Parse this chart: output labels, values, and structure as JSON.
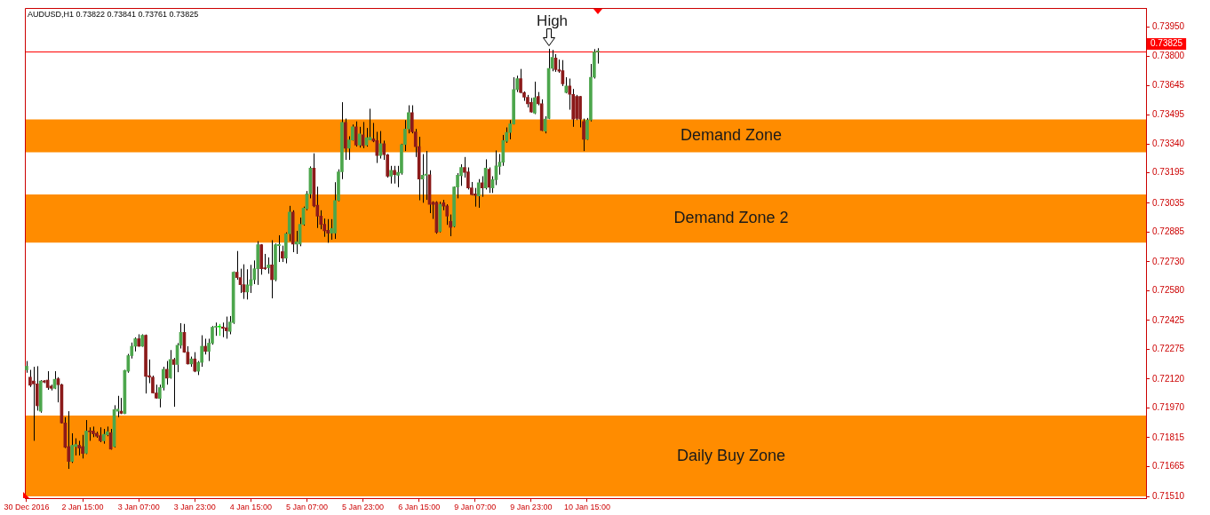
{
  "chart_data": {
    "type": "candlestick",
    "title": "AUDUSD,H1 0.73822 0.73841 0.73761 0.73825",
    "categories": [
      "30 Dec 2016",
      null,
      null,
      null,
      null,
      null,
      null,
      null,
      null,
      null,
      null,
      null,
      null,
      null,
      null,
      null,
      "2 Jan 15:00",
      null,
      null,
      null,
      null,
      null,
      null,
      null,
      null,
      null,
      null,
      null,
      null,
      null,
      null,
      null,
      "3 Jan 07:00",
      null,
      null,
      null,
      null,
      null,
      null,
      null,
      null,
      null,
      null,
      null,
      null,
      null,
      null,
      null,
      "3 Jan 23:00",
      null,
      null,
      null,
      null,
      null,
      null,
      null,
      null,
      null,
      null,
      null,
      null,
      null,
      null,
      null,
      "4 Jan 15:00",
      null,
      null,
      null,
      null,
      null,
      null,
      null,
      null,
      null,
      null,
      null,
      null,
      null,
      null,
      null,
      "5 Jan 07:00",
      null,
      null,
      null,
      null,
      null,
      null,
      null,
      null,
      null,
      null,
      null,
      null,
      null,
      null,
      null,
      "5 Jan 23:00",
      null,
      null,
      null,
      null,
      null,
      null,
      null,
      null,
      null,
      null,
      null,
      null,
      null,
      null,
      null,
      "6 Jan 15:00",
      null,
      null,
      null,
      null,
      null,
      null,
      null,
      null,
      null,
      null,
      null,
      null,
      null,
      null,
      null,
      "9 Jan 07:00",
      null,
      null,
      null,
      null,
      null,
      null,
      null,
      null,
      null,
      null,
      null,
      null,
      null,
      null,
      null,
      "9 Jan 23:00",
      null,
      null,
      null,
      null,
      null,
      null,
      null,
      null,
      null,
      null,
      null,
      null,
      null,
      null,
      null,
      "10 Jan 15:00",
      null,
      null,
      null,
      null,
      null,
      null,
      null,
      null,
      null,
      null,
      null,
      null,
      null,
      null,
      null,
      null,
      null,
      null,
      null,
      null,
      null,
      null,
      null,
      null,
      null,
      null,
      null,
      null,
      null,
      null,
      null,
      null,
      null,
      null,
      null,
      null,
      null,
      null,
      null,
      null,
      null,
      null,
      null,
      null,
      null,
      null,
      null,
      null,
      null,
      null,
      null,
      null,
      null,
      null,
      null,
      null,
      null,
      null,
      null,
      null,
      null,
      null,
      null,
      null,
      null,
      null,
      null,
      null,
      null,
      null,
      null,
      null,
      null,
      null,
      null,
      null,
      null,
      null,
      null,
      null,
      null,
      null,
      null,
      null,
      null,
      null,
      null,
      null,
      null,
      null,
      null,
      null,
      null,
      null,
      null,
      null,
      null,
      null,
      null,
      null,
      null,
      null,
      null,
      null,
      null,
      null,
      null,
      null,
      null,
      null,
      null,
      null,
      null,
      null,
      null,
      null,
      null,
      null,
      null,
      null,
      null,
      null,
      null,
      null,
      null,
      null,
      null,
      null,
      null,
      null,
      null,
      null,
      null,
      null,
      null,
      null,
      null,
      null,
      null,
      null,
      null,
      null,
      null,
      null,
      null,
      null,
      null,
      null,
      null,
      null,
      null,
      null,
      null,
      null,
      null,
      null,
      null,
      null,
      null
    ],
    "ohlc": [
      [
        0.72168,
        0.72214,
        0.72153,
        0.72187
      ],
      [
        0.7213,
        0.72168,
        0.72079,
        0.72088
      ],
      [
        0.7211,
        0.72184,
        0.71799,
        0.72095
      ],
      [
        0.72095,
        0.72187,
        0.71956,
        0.71981
      ],
      [
        0.71953,
        0.72115,
        0.71945,
        0.7211
      ],
      [
        0.72111,
        0.72115,
        0.72099,
        0.72104
      ],
      [
        0.72115,
        0.72161,
        0.72064,
        0.72076
      ],
      [
        0.72084,
        0.72091,
        0.72061,
        0.72072
      ],
      [
        0.72072,
        0.72161,
        0.72068,
        0.72119
      ],
      [
        0.72122,
        0.7213,
        0.71999,
        0.72091
      ],
      [
        0.72091,
        0.72096,
        0.71889,
        0.71892
      ],
      [
        0.71892,
        0.71922,
        0.71761,
        0.71766
      ],
      [
        0.71769,
        0.71953,
        0.71653,
        0.71692
      ],
      [
        0.71692,
        0.71838,
        0.71684,
        0.71776
      ],
      [
        0.71769,
        0.71812,
        0.71723,
        0.7178
      ],
      [
        0.71776,
        0.71799,
        0.71723,
        0.71761
      ],
      [
        0.71769,
        0.7183,
        0.71707,
        0.71733
      ],
      [
        0.71735,
        0.71907,
        0.7173,
        0.7185
      ],
      [
        0.7185,
        0.71869,
        0.71799,
        0.71846
      ],
      [
        0.7185,
        0.71873,
        0.71818,
        0.71835
      ],
      [
        0.71838,
        0.71846,
        0.71815,
        0.71823
      ],
      [
        0.71826,
        0.71869,
        0.71792,
        0.71799
      ],
      [
        0.71799,
        0.71861,
        0.71784,
        0.71833
      ],
      [
        0.7183,
        0.71873,
        0.71823,
        0.71846
      ],
      [
        0.71841,
        0.71861,
        0.71753,
        0.71756
      ],
      [
        0.71769,
        0.71984,
        0.71764,
        0.71961
      ],
      [
        0.71953,
        0.72033,
        0.71922,
        0.71964
      ],
      [
        0.71953,
        0.72022,
        0.71938,
        0.71942
      ],
      [
        0.71941,
        0.72168,
        0.71938,
        0.72165
      ],
      [
        0.72161,
        0.72251,
        0.72153,
        0.72242
      ],
      [
        0.72242,
        0.7231,
        0.72227,
        0.72291
      ],
      [
        0.72291,
        0.72337,
        0.72264,
        0.7233
      ],
      [
        0.7233,
        0.72353,
        0.72288,
        0.72291
      ],
      [
        0.72291,
        0.72353,
        0.72288,
        0.72348
      ],
      [
        0.72348,
        0.72352,
        0.72045,
        0.72134
      ],
      [
        0.72138,
        0.72222,
        0.72099,
        0.7213
      ],
      [
        0.7213,
        0.72138,
        0.72045,
        0.72048
      ],
      [
        0.72048,
        0.72091,
        0.72018,
        0.72021
      ],
      [
        0.72019,
        0.72091,
        0.71973,
        0.72076
      ],
      [
        0.72076,
        0.72184,
        0.72061,
        0.72171
      ],
      [
        0.72171,
        0.72214,
        0.72091,
        0.72125
      ],
      [
        0.72127,
        0.72271,
        0.72122,
        0.72222
      ],
      [
        0.72222,
        0.7223,
        0.71976,
        0.72196
      ],
      [
        0.72196,
        0.72307,
        0.72156,
        0.72296
      ],
      [
        0.72296,
        0.72411,
        0.72279,
        0.72363
      ],
      [
        0.72363,
        0.72407,
        0.72257,
        0.7226
      ],
      [
        0.7226,
        0.72291,
        0.72196,
        0.72199
      ],
      [
        0.72199,
        0.72237,
        0.72184,
        0.72225
      ],
      [
        0.72225,
        0.7226,
        0.72156,
        0.72161
      ],
      [
        0.72161,
        0.72214,
        0.72141,
        0.72207
      ],
      [
        0.72207,
        0.72348,
        0.72184,
        0.72291
      ],
      [
        0.72291,
        0.7233,
        0.72248,
        0.72264
      ],
      [
        0.72264,
        0.7233,
        0.72214,
        0.72307
      ],
      [
        0.72307,
        0.72396,
        0.72299,
        0.7239
      ],
      [
        0.7239,
        0.72414,
        0.72345,
        0.72393
      ],
      [
        0.72391,
        0.72407,
        0.72345,
        0.72391
      ],
      [
        0.72391,
        0.72414,
        0.72338,
        0.72384
      ],
      [
        0.72387,
        0.72445,
        0.7233,
        0.72371
      ],
      [
        0.72368,
        0.72448,
        0.72353,
        0.72417
      ],
      [
        0.72414,
        0.7268,
        0.72407,
        0.72676
      ],
      [
        0.72676,
        0.72786,
        0.72637,
        0.72648
      ],
      [
        0.72648,
        0.72694,
        0.72568,
        0.72611
      ],
      [
        0.72611,
        0.72717,
        0.72537,
        0.72573
      ],
      [
        0.72573,
        0.72691,
        0.72534,
        0.7261
      ],
      [
        0.72607,
        0.72714,
        0.72568,
        0.72637
      ],
      [
        0.72637,
        0.72737,
        0.72614,
        0.72694
      ],
      [
        0.72694,
        0.72837,
        0.7261,
        0.72819
      ],
      [
        0.72819,
        0.72822,
        0.72663,
        0.72694
      ],
      [
        0.72699,
        0.72771,
        0.72688,
        0.72694
      ],
      [
        0.72699,
        0.72753,
        0.72668,
        0.72714
      ],
      [
        0.72714,
        0.72842,
        0.7254,
        0.72637
      ],
      [
        0.72637,
        0.72825,
        0.72629,
        0.72819
      ],
      [
        0.72814,
        0.72868,
        0.72729,
        0.7282
      ],
      [
        0.72783,
        0.72814,
        0.72729,
        0.72749
      ],
      [
        0.72749,
        0.72883,
        0.72722,
        0.72876
      ],
      [
        0.72876,
        0.73021,
        0.72837,
        0.72989
      ],
      [
        0.72989,
        0.72998,
        0.7278,
        0.72822
      ],
      [
        0.72822,
        0.72891,
        0.72771,
        0.72834
      ],
      [
        0.72822,
        0.7296,
        0.72811,
        0.72925
      ],
      [
        0.72925,
        0.73017,
        0.72918,
        0.73009
      ],
      [
        0.73006,
        0.73098,
        0.72998,
        0.73083
      ],
      [
        0.73083,
        0.73226,
        0.7306,
        0.73217
      ],
      [
        0.73217,
        0.73294,
        0.73014,
        0.73021
      ],
      [
        0.73025,
        0.73121,
        0.72906,
        0.72968
      ],
      [
        0.72968,
        0.72998,
        0.72899,
        0.72925
      ],
      [
        0.72925,
        0.72955,
        0.7286,
        0.72891
      ],
      [
        0.72894,
        0.72952,
        0.72829,
        0.72879
      ],
      [
        0.72879,
        0.72952,
        0.72845,
        0.72903
      ],
      [
        0.72879,
        0.73144,
        0.72849,
        0.73049
      ],
      [
        0.73049,
        0.73211,
        0.73045,
        0.73198
      ],
      [
        0.73198,
        0.7356,
        0.7316,
        0.73455
      ],
      [
        0.73455,
        0.73475,
        0.7326,
        0.73321
      ],
      [
        0.73321,
        0.73383,
        0.7326,
        0.73364
      ],
      [
        0.73364,
        0.73444,
        0.7336,
        0.73432
      ],
      [
        0.73432,
        0.7346,
        0.73329,
        0.73337
      ],
      [
        0.73337,
        0.73432,
        0.73324,
        0.73395
      ],
      [
        0.7339,
        0.73457,
        0.73321,
        0.73334
      ],
      [
        0.73337,
        0.73426,
        0.73329,
        0.73375
      ],
      [
        0.73364,
        0.73526,
        0.73363,
        0.73378
      ],
      [
        0.7337,
        0.73452,
        0.73352,
        0.73358
      ],
      [
        0.7336,
        0.73406,
        0.73244,
        0.73283
      ],
      [
        0.73283,
        0.7341,
        0.73267,
        0.73344
      ],
      [
        0.73344,
        0.7336,
        0.7326,
        0.73287
      ],
      [
        0.73287,
        0.73291,
        0.73168,
        0.73175
      ],
      [
        0.73175,
        0.73229,
        0.73137,
        0.73206
      ],
      [
        0.73206,
        0.73229,
        0.73137,
        0.73183
      ],
      [
        0.7318,
        0.73229,
        0.73118,
        0.73195
      ],
      [
        0.73191,
        0.73344,
        0.73183,
        0.7334
      ],
      [
        0.7334,
        0.73467,
        0.73306,
        0.73421
      ],
      [
        0.73421,
        0.73544,
        0.73398,
        0.73506
      ],
      [
        0.73506,
        0.73544,
        0.73398,
        0.73406
      ],
      [
        0.73406,
        0.73421,
        0.73275,
        0.73329
      ],
      [
        0.73329,
        0.7338,
        0.7305,
        0.7316
      ],
      [
        0.7316,
        0.7329,
        0.73037,
        0.7318
      ],
      [
        0.7318,
        0.73306,
        0.73052,
        0.73186
      ],
      [
        0.73183,
        0.73206,
        0.72983,
        0.73029
      ],
      [
        0.7304,
        0.73045,
        0.72953,
        0.73029
      ],
      [
        0.7304,
        0.73045,
        0.72876,
        0.72883
      ],
      [
        0.72888,
        0.73042,
        0.72883,
        0.73029
      ],
      [
        0.73037,
        0.73052,
        0.72998,
        0.73019
      ],
      [
        0.73021,
        0.73029,
        0.72922,
        0.72968
      ],
      [
        0.7294,
        0.72976,
        0.72863,
        0.72909
      ],
      [
        0.72914,
        0.73122,
        0.72909,
        0.73119
      ],
      [
        0.73119,
        0.73191,
        0.7306,
        0.7318
      ],
      [
        0.73178,
        0.73237,
        0.73125,
        0.73221
      ],
      [
        0.73221,
        0.73275,
        0.73168,
        0.73195
      ],
      [
        0.73198,
        0.73221,
        0.73106,
        0.73114
      ],
      [
        0.73114,
        0.73145,
        0.73075,
        0.73079
      ],
      [
        0.73083,
        0.73114,
        0.73017,
        0.73075
      ],
      [
        0.73072,
        0.7316,
        0.73011,
        0.73141
      ],
      [
        0.73141,
        0.73175,
        0.73068,
        0.73114
      ],
      [
        0.73114,
        0.73263,
        0.73106,
        0.73217
      ],
      [
        0.73211,
        0.73221,
        0.73088,
        0.73117
      ],
      [
        0.73114,
        0.73175,
        0.73088,
        0.73157
      ],
      [
        0.73157,
        0.73309,
        0.73129,
        0.73229
      ],
      [
        0.73226,
        0.73291,
        0.73183,
        0.73248
      ],
      [
        0.73248,
        0.7339,
        0.73229,
        0.7336
      ],
      [
        0.73357,
        0.73429,
        0.73349,
        0.73403
      ],
      [
        0.73403,
        0.73467,
        0.73367,
        0.73447
      ],
      [
        0.73447,
        0.7369,
        0.73444,
        0.73626
      ],
      [
        0.73626,
        0.73698,
        0.73613,
        0.73683
      ],
      [
        0.73683,
        0.73733,
        0.73606,
        0.7361
      ],
      [
        0.7361,
        0.73616,
        0.73567,
        0.73586
      ],
      [
        0.73586,
        0.73598,
        0.73533,
        0.73552
      ],
      [
        0.73559,
        0.73582,
        0.73506,
        0.73509
      ],
      [
        0.73503,
        0.73667,
        0.73498,
        0.73583
      ],
      [
        0.7359,
        0.73613,
        0.73544,
        0.73552
      ],
      [
        0.73552,
        0.73575,
        0.7341,
        0.73413
      ],
      [
        0.7341,
        0.73487,
        0.73398,
        0.73472
      ],
      [
        0.73475,
        0.73838,
        0.73472,
        0.73736
      ],
      [
        0.73736,
        0.73832,
        0.73721,
        0.73793
      ],
      [
        0.7379,
        0.7381,
        0.73718,
        0.73729
      ],
      [
        0.73729,
        0.73782,
        0.73713,
        0.73721
      ],
      [
        0.73724,
        0.73779,
        0.73644,
        0.73656
      ],
      [
        0.7361,
        0.7369,
        0.73606,
        0.73644
      ],
      [
        0.73644,
        0.73683,
        0.73521,
        0.73601
      ],
      [
        0.73601,
        0.73629,
        0.73432,
        0.73472
      ],
      [
        0.7359,
        0.73598,
        0.73467,
        0.73475
      ],
      [
        0.7359,
        0.73592,
        0.73429,
        0.73472
      ],
      [
        0.7346,
        0.73475,
        0.73306,
        0.73367
      ],
      [
        0.73367,
        0.73478,
        0.73364,
        0.73467
      ],
      [
        0.73467,
        0.73759,
        0.7346,
        0.7369
      ],
      [
        0.7369,
        0.73836,
        0.73683,
        0.73821
      ],
      [
        0.73822,
        0.73841,
        0.73761,
        0.73825
      ],
      null,
      null,
      null,
      null,
      null,
      null,
      null,
      null,
      null,
      null,
      null,
      null,
      null,
      null,
      null,
      null,
      null,
      null,
      null,
      null,
      null,
      null,
      null,
      null,
      null,
      null,
      null,
      null,
      null,
      null,
      null,
      null,
      null,
      null,
      null,
      null,
      null,
      null,
      null,
      null,
      null,
      null,
      null,
      null,
      null,
      null,
      null,
      null,
      null,
      null,
      null,
      null,
      null,
      null,
      null,
      null,
      null,
      null,
      null,
      null,
      null,
      null,
      null,
      null,
      null,
      null,
      null,
      null,
      null,
      null,
      null,
      null,
      null,
      null,
      null,
      null,
      null,
      null,
      null,
      null,
      null,
      null,
      null,
      null,
      null,
      null,
      null,
      null,
      null,
      null,
      null,
      null,
      null,
      null,
      null,
      null,
      null,
      null,
      null,
      null,
      null,
      null,
      null,
      null,
      null,
      null,
      null,
      null,
      null,
      null,
      null,
      null,
      null,
      null,
      null,
      null,
      null,
      null,
      null,
      null,
      null,
      null,
      null,
      null,
      null,
      null,
      null,
      null,
      null,
      null,
      null,
      null,
      null,
      null,
      null,
      null,
      null,
      null,
      null,
      null,
      null,
      null,
      null,
      null,
      null,
      null,
      null,
      null,
      null,
      null,
      null,
      null,
      null,
      null,
      null,
      null
    ],
    "colors": [
      "#4ca64c",
      "#8b1a1a",
      "#8b1a1a",
      "#8b1a1a",
      "#4ca64c",
      "#8b1a1a",
      "#8b1a1a",
      "#8b1a1a",
      "#4ca64c",
      "#8b1a1a",
      "#8b1a1a",
      "#8b1a1a",
      "#8b1a1a",
      "#4ca64c",
      "#4ca64c",
      "#8b1a1a",
      "#8b1a1a",
      "#4ca64c",
      "#8b1a1a",
      "#8b1a1a",
      "#8b1a1a",
      "#8b1a1a",
      "#4ca64c",
      "#4ca64c",
      "#8b1a1a",
      "#4ca64c",
      "#4ca64c",
      "#8b1a1a",
      "#4ca64c",
      "#4ca64c",
      "#4ca64c",
      "#4ca64c",
      "#8b1a1a",
      "#4ca64c",
      "#8b1a1a",
      "#8b1a1a",
      "#8b1a1a",
      "#8b1a1a",
      "#4ca64c",
      "#4ca64c",
      "#8b1a1a",
      "#4ca64c",
      "#8b1a1a",
      "#4ca64c",
      "#4ca64c",
      "#8b1a1a",
      "#8b1a1a",
      "#4ca64c",
      "#8b1a1a",
      "#4ca64c",
      "#4ca64c",
      "#8b1a1a",
      "#4ca64c",
      "#4ca64c",
      "#4ca64c",
      "#00ee00",
      "#8b1a1a",
      "#8b1a1a",
      "#4ca64c",
      "#4ca64c",
      "#8b1a1a",
      "#8b1a1a",
      "#8b1a1a",
      "#4ca64c",
      "#4ca64c",
      "#4ca64c",
      "#4ca64c",
      "#8b1a1a",
      "#8b1a1a",
      "#4ca64c",
      "#8b1a1a",
      "#4ca64c",
      "#4ca64c",
      "#8b1a1a",
      "#4ca64c",
      "#4ca64c",
      "#8b1a1a",
      "#4ca64c",
      "#4ca64c",
      "#4ca64c",
      "#4ca64c",
      "#4ca64c",
      "#8b1a1a",
      "#8b1a1a",
      "#8b1a1a",
      "#8b1a1a",
      "#8b1a1a",
      "#4ca64c",
      "#4ca64c",
      "#4ca64c",
      "#4ca64c",
      "#8b1a1a",
      "#4ca64c",
      "#4ca64c",
      "#8b1a1a",
      "#4ca64c",
      "#8b1a1a",
      "#4ca64c",
      "#4ca64c",
      "#8b1a1a",
      "#8b1a1a",
      "#4ca64c",
      "#8b1a1a",
      "#8b1a1a",
      "#4ca64c",
      "#8b1a1a",
      "#4ca64c",
      "#4ca64c",
      "#4ca64c",
      "#4ca64c",
      "#8b1a1a",
      "#8b1a1a",
      "#8b1a1a",
      "#4ca64c",
      "#4ca64c",
      "#8b1a1a",
      "#8b1a1a",
      "#8b1a1a",
      "#4ca64c",
      "#8b1a1a",
      "#8b1a1a",
      "#8b1a1a",
      "#4ca64c",
      "#4ca64c",
      "#4ca64c",
      "#8b1a1a",
      "#8b1a1a",
      "#8b1a1a",
      "#8b1a1a",
      "#4ca64c",
      "#8b1a1a",
      "#4ca64c",
      "#8b1a1a",
      "#4ca64c",
      "#4ca64c",
      "#4ca64c",
      "#4ca64c",
      "#4ca64c",
      "#4ca64c",
      "#4ca64c",
      "#4ca64c",
      "#8b1a1a",
      "#8b1a1a",
      "#8b1a1a",
      "#8b1a1a",
      "#4ca64c",
      "#8b1a1a",
      "#8b1a1a",
      "#4ca64c",
      "#4ca64c",
      "#4ca64c",
      "#8b1a1a",
      "#8b1a1a",
      "#8b1a1a",
      "#4ca64c",
      "#8b1a1a",
      "#8b1a1a",
      "#8b1a1a",
      "#8b1a1a",
      "#8b1a1a",
      "#4ca64c",
      "#4ca64c",
      "#4ca64c",
      "#4ca64c",
      null,
      null,
      null,
      null,
      null,
      null,
      null,
      null,
      null,
      null,
      null,
      null,
      null,
      null,
      null,
      null,
      null,
      null,
      null,
      null,
      null,
      null,
      null,
      null,
      null,
      null,
      null,
      null,
      null,
      null,
      null,
      null,
      null,
      null,
      null,
      null,
      null,
      null,
      null,
      null,
      null,
      null,
      null,
      null,
      null,
      null,
      null,
      null,
      null,
      null,
      null,
      null,
      null,
      null,
      null,
      null,
      null,
      null,
      null,
      null,
      null,
      null,
      null,
      null,
      null,
      null,
      null,
      null,
      null,
      null,
      null,
      null,
      null,
      null,
      null,
      null,
      null,
      null,
      null,
      null,
      null,
      null,
      null,
      null,
      null,
      null,
      null,
      null,
      null,
      null,
      null,
      null,
      null,
      null,
      null,
      null,
      null,
      null,
      null,
      null,
      null,
      null,
      null,
      null,
      null,
      null,
      null,
      null,
      null,
      null,
      null,
      null,
      null,
      null,
      null,
      null,
      null,
      null,
      null,
      null,
      null,
      null,
      null,
      null,
      null,
      null,
      null,
      null,
      null,
      null,
      null,
      null,
      null,
      null,
      null,
      null,
      null,
      null,
      null,
      null,
      null,
      null,
      null,
      null,
      null,
      null,
      null,
      null,
      null,
      null,
      null,
      null,
      null,
      null,
      null,
      null
    ],
    "ylim": [
      0.715,
      0.7405
    ],
    "yticks": [
      {
        "value": 0.7151,
        "label": "0.71510"
      },
      {
        "value": 0.71665,
        "label": "0.71665"
      },
      {
        "value": 0.71815,
        "label": "0.71815"
      },
      {
        "value": 0.7197,
        "label": "0.71970"
      },
      {
        "value": 0.7212,
        "label": "0.72120"
      },
      {
        "value": 0.72275,
        "label": "0.72275"
      },
      {
        "value": 0.72425,
        "label": "0.72425"
      },
      {
        "value": 0.7258,
        "label": "0.72580"
      },
      {
        "value": 0.7273,
        "label": "0.72730"
      },
      {
        "value": 0.72885,
        "label": "0.72885"
      },
      {
        "value": 0.73035,
        "label": "0.73035"
      },
      {
        "value": 0.73195,
        "label": "0.73195"
      },
      {
        "value": 0.7334,
        "label": "0.73340"
      },
      {
        "value": 0.73495,
        "label": "0.73495"
      },
      {
        "value": 0.73645,
        "label": "0.73645"
      },
      {
        "value": 0.738,
        "label": "0.73800"
      },
      {
        "value": 0.7395,
        "label": "0.73950"
      }
    ],
    "bands": [
      {
        "axis": "y",
        "from": 0.733,
        "to": 0.7347,
        "label": "Demand Zone",
        "color": "#ff8c00"
      },
      {
        "axis": "y",
        "from": 0.7283,
        "to": 0.7308,
        "label": "Demand Zone 2",
        "color": "#ff8c00"
      },
      {
        "axis": "y",
        "from": 0.7151,
        "to": 0.7193,
        "label": "Daily Buy Zone",
        "color": "#ff8c00"
      }
    ],
    "ref_lines": [
      {
        "axis": "y",
        "value": 0.73825,
        "label": "0.73825",
        "color": "#ff0000"
      }
    ],
    "annotations": [
      {
        "text": "High",
        "y": 0.73838
      }
    ]
  }
}
